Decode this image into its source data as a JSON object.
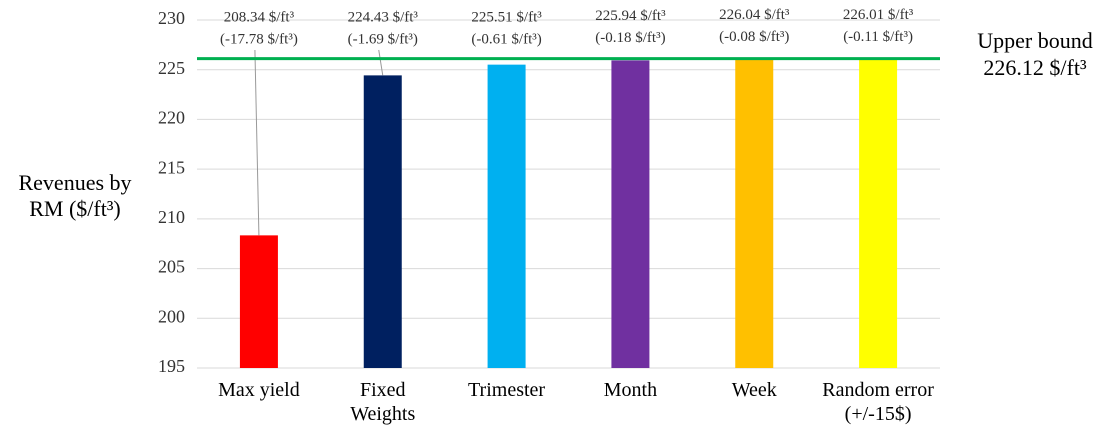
{
  "chart_data": {
    "type": "bar",
    "y_axis_label": "Revenues by\nRM ($/ft³)",
    "categories": [
      "Max yield",
      "Fixed\nWeights",
      "Trimester",
      "Month",
      "Week",
      "Random error\n(+/-15$)"
    ],
    "values": [
      208.34,
      224.43,
      225.51,
      225.94,
      226.04,
      226.01
    ],
    "value_labels": [
      "208.34 $/ft³",
      "224.43 $/ft³",
      "225.51 $/ft³",
      "225.94 $/ft³",
      "226.04 $/ft³",
      "226.01 $/ft³"
    ],
    "difference_labels": [
      "(-17.78 $/ft³)",
      "(-1.69 $/ft³)",
      "(-0.61 $/ft³)",
      "(-0.18 $/ft³)",
      "(-0.08 $/ft³)",
      "(-0.11 $/ft³)"
    ],
    "colors": [
      "#ff0000",
      "#002060",
      "#00b0f0",
      "#7030a0",
      "#ffc000",
      "#ffff00"
    ],
    "reference_line": {
      "value": 226.12,
      "label": "Upper bound",
      "value_label": "226.12 $/ft³",
      "color": "#00b050"
    },
    "ylim": [
      195,
      230
    ],
    "yticks": [
      195,
      200,
      205,
      210,
      215,
      220,
      225,
      230
    ],
    "grid": true
  }
}
